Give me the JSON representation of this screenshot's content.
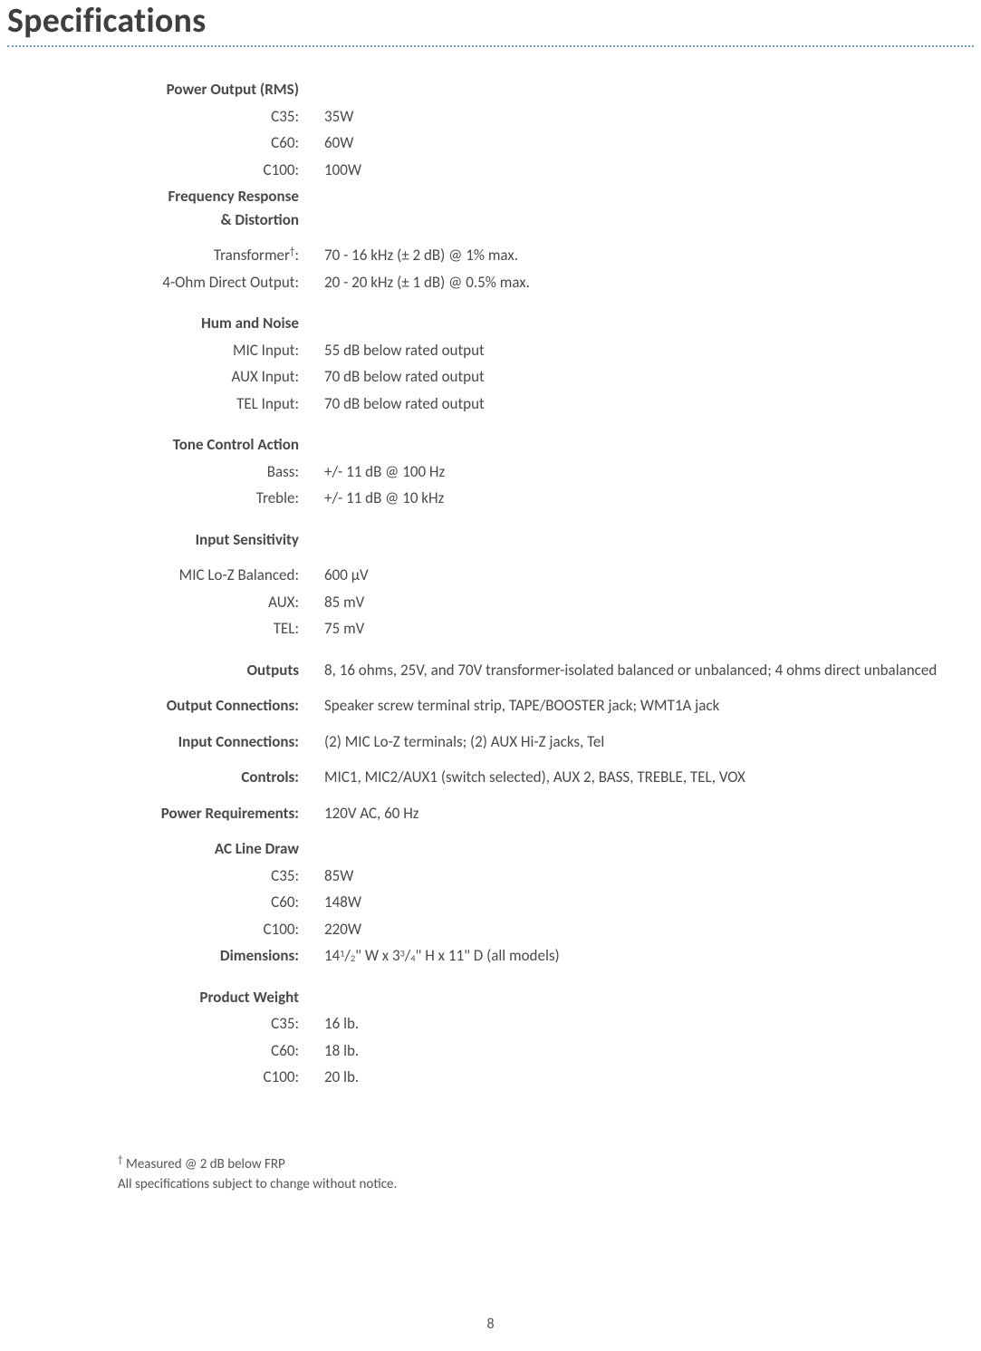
{
  "title": "Specifications",
  "power_output_rms": {
    "heading": "Power Output (RMS)",
    "rows": [
      {
        "label": "C35:",
        "value": "35W"
      },
      {
        "label": "C60:",
        "value": "60W"
      },
      {
        "label": "C100:",
        "value": "100W"
      }
    ]
  },
  "freq_response": {
    "heading_line1": "Frequency Response",
    "heading_line2": "& Distortion",
    "rows": [
      {
        "label_pre": "Transformer",
        "dagger": "†",
        "label_post": ":",
        "value": "70 - 16 kHz (± 2 dB) @ 1% max."
      },
      {
        "label": "4-Ohm Direct Output:",
        "value": "20 - 20 kHz (± 1 dB) @ 0.5% max."
      }
    ]
  },
  "hum_noise": {
    "heading": "Hum and Noise",
    "rows": [
      {
        "label": "MIC Input:",
        "value": "55 dB below rated output"
      },
      {
        "label": "AUX Input:",
        "value": "70 dB below rated output"
      },
      {
        "label": "TEL Input:",
        "value": "70 dB below rated output"
      }
    ]
  },
  "tone_control": {
    "heading": "Tone Control Action",
    "rows": [
      {
        "label": "Bass:",
        "value": "+/- 11 dB @ 100 Hz"
      },
      {
        "label": "Treble:",
        "value": "+/- 11 dB @ 10 kHz"
      }
    ]
  },
  "input_sensitivity": {
    "heading": "Input Sensitivity",
    "rows": [
      {
        "label": "MIC Lo-Z Balanced:",
        "value": "600 µV"
      },
      {
        "label": "AUX:",
        "value": "85 mV"
      },
      {
        "label": "TEL:",
        "value": "75 mV"
      }
    ]
  },
  "outputs": {
    "label": "Outputs",
    "value": "8, 16 ohms, 25V, and 70V transformer-isolated balanced or unbalanced; 4 ohms direct unbalanced"
  },
  "output_conn": {
    "label": "Output Connections:",
    "value": "Speaker screw terminal strip, TAPE/BOOSTER jack; WMT1A jack"
  },
  "input_conn": {
    "label": "Input Connections:",
    "value": "(2) MIC Lo-Z terminals; (2) AUX Hi-Z jacks, Tel"
  },
  "controls": {
    "label": "Controls:",
    "value": "MIC1, MIC2/AUX1 (switch selected), AUX 2, BASS, TREBLE, TEL, VOX"
  },
  "power_req": {
    "label": "Power Requirements:",
    "value": "120V AC, 60 Hz"
  },
  "ac_line": {
    "heading": "AC Line Draw",
    "rows": [
      {
        "label": "C35:",
        "value": "85W"
      },
      {
        "label": "C60:",
        "value": "148W"
      },
      {
        "label": "C100:",
        "value": "220W"
      }
    ]
  },
  "dimensions": {
    "label": "Dimensions:",
    "w_whole": "14",
    "w_num": "1",
    "w_den": "2",
    "h_whole": "3",
    "h_num": "3",
    "h_den": "4",
    "d": "11",
    "suffix": "(all models)"
  },
  "product_weight": {
    "heading": "Product Weight",
    "rows": [
      {
        "label": "C35:",
        "value": "16 lb."
      },
      {
        "label": "C60:",
        "value": "18 lb."
      },
      {
        "label": "C100:",
        "value": "20 lb."
      }
    ]
  },
  "footnotes": {
    "line1_dagger": "†",
    "line1_text": " Measured @ 2 dB below FRP",
    "line2": "All specifications subject to change without notice."
  },
  "page_number": "8"
}
